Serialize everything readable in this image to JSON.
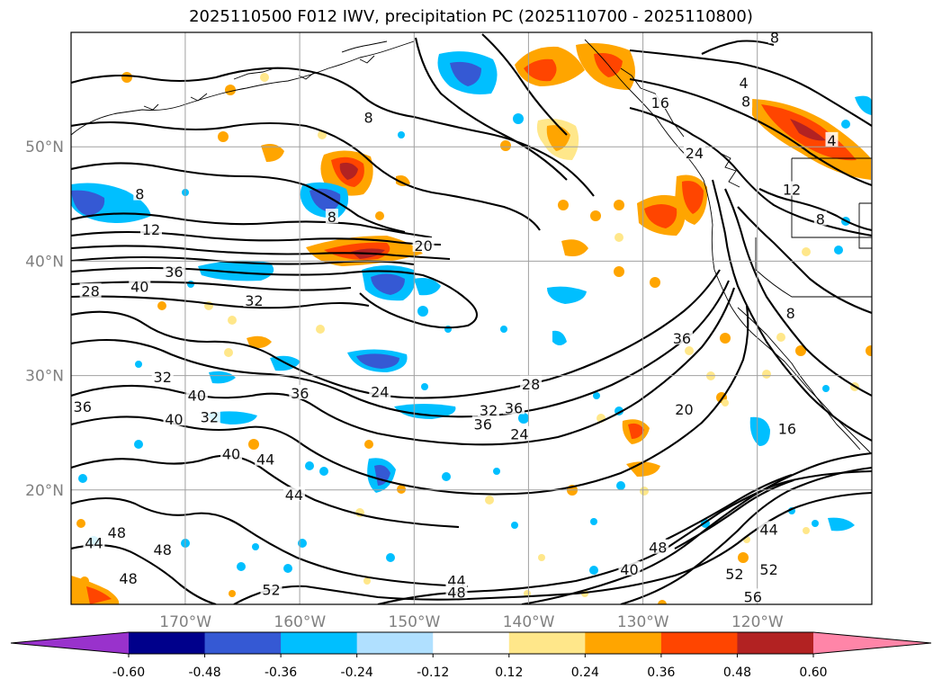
{
  "title": "2025110500 F012 IWV, precipitation PC (2025110700 - 2025110800)",
  "map": {
    "lon_range": [
      -180,
      -110
    ],
    "lat_range": [
      10,
      60
    ],
    "lat_ticks": [
      {
        "value": 20,
        "label": "20°N"
      },
      {
        "value": 30,
        "label": "30°N"
      },
      {
        "value": 40,
        "label": "40°N"
      },
      {
        "value": 50,
        "label": "50°N"
      }
    ],
    "lon_ticks": [
      {
        "value": -170,
        "label": "170°W"
      },
      {
        "value": -160,
        "label": "160°W"
      },
      {
        "value": -150,
        "label": "150°W"
      },
      {
        "value": -140,
        "label": "140°W"
      },
      {
        "value": -130,
        "label": "130°W"
      },
      {
        "value": -120,
        "label": "120°W"
      }
    ],
    "contour_labels": [
      {
        "text": "8",
        "lon": -174,
        "lat": 45.8
      },
      {
        "text": "12",
        "lon": -173,
        "lat": 42.7
      },
      {
        "text": "36",
        "lon": -171,
        "lat": 39
      },
      {
        "text": "28",
        "lon": -178.3,
        "lat": 37.3
      },
      {
        "text": "40",
        "lon": -174,
        "lat": 37.7
      },
      {
        "text": "32",
        "lon": -164,
        "lat": 36.5
      },
      {
        "text": "20",
        "lon": -149.2,
        "lat": 41.3
      },
      {
        "text": "8",
        "lon": -157.2,
        "lat": 43.8
      },
      {
        "text": "8",
        "lon": -154,
        "lat": 52.5
      },
      {
        "text": "32",
        "lon": -172,
        "lat": 29.8
      },
      {
        "text": "40",
        "lon": -169,
        "lat": 28.2
      },
      {
        "text": "40",
        "lon": -171,
        "lat": 26.1
      },
      {
        "text": "32",
        "lon": -167.9,
        "lat": 26.3
      },
      {
        "text": "36",
        "lon": -179,
        "lat": 27.2
      },
      {
        "text": "36",
        "lon": -160,
        "lat": 28.4
      },
      {
        "text": "24",
        "lon": -153,
        "lat": 28.5
      },
      {
        "text": "40",
        "lon": -166,
        "lat": 23.1
      },
      {
        "text": "44",
        "lon": -163,
        "lat": 22.6
      },
      {
        "text": "44",
        "lon": -160.5,
        "lat": 19.5
      },
      {
        "text": "48",
        "lon": -176,
        "lat": 16.2
      },
      {
        "text": "44",
        "lon": -178,
        "lat": 15.3
      },
      {
        "text": "48",
        "lon": -172,
        "lat": 14.7
      },
      {
        "text": "48",
        "lon": -175,
        "lat": 12.2
      },
      {
        "text": "52",
        "lon": -162.5,
        "lat": 11.2
      },
      {
        "text": "44",
        "lon": -146.3,
        "lat": 12
      },
      {
        "text": "48",
        "lon": -146.3,
        "lat": 11
      },
      {
        "text": "28",
        "lon": -139.8,
        "lat": 29.2
      },
      {
        "text": "32",
        "lon": -143.5,
        "lat": 26.9
      },
      {
        "text": "36",
        "lon": -141.3,
        "lat": 27.1
      },
      {
        "text": "36",
        "lon": -144,
        "lat": 25.7
      },
      {
        "text": "24",
        "lon": -140.8,
        "lat": 24.8
      },
      {
        "text": "36",
        "lon": -126.6,
        "lat": 33.2
      },
      {
        "text": "20",
        "lon": -126.4,
        "lat": 27
      },
      {
        "text": "16",
        "lon": -117.4,
        "lat": 25.3
      },
      {
        "text": "44",
        "lon": -119,
        "lat": 16.5
      },
      {
        "text": "52",
        "lon": -119,
        "lat": 13
      },
      {
        "text": "52",
        "lon": -122,
        "lat": 12.6
      },
      {
        "text": "56",
        "lon": -120.4,
        "lat": 10.6
      },
      {
        "text": "40",
        "lon": -131.2,
        "lat": 13
      },
      {
        "text": "48",
        "lon": -128.7,
        "lat": 14.9
      },
      {
        "text": "24",
        "lon": -125.5,
        "lat": 49.4
      },
      {
        "text": "16",
        "lon": -128.5,
        "lat": 53.8
      },
      {
        "text": "4",
        "lon": -121.2,
        "lat": 55.5
      },
      {
        "text": "8",
        "lon": -121,
        "lat": 53.9
      },
      {
        "text": "4",
        "lon": -113.5,
        "lat": 50.5
      },
      {
        "text": "8",
        "lon": -118.5,
        "lat": 59.5
      },
      {
        "text": "12",
        "lon": -117,
        "lat": 46.2
      },
      {
        "text": "8",
        "lon": -114.5,
        "lat": 43.6
      },
      {
        "text": "8",
        "lon": -117.1,
        "lat": 35.4
      }
    ]
  },
  "colorbar": {
    "ticks": [
      "-0.60",
      "-0.48",
      "-0.36",
      "-0.24",
      "-0.12",
      "0.12",
      "0.24",
      "0.36",
      "0.48",
      "0.60"
    ],
    "colors": [
      "#9932cc",
      "#00008b",
      "#3559d4",
      "#00bfff",
      "#b0e0ff",
      "#ffffff",
      "#ffe78a",
      "#ffa500",
      "#ff4500",
      "#b22222",
      "#ff85a8"
    ]
  }
}
